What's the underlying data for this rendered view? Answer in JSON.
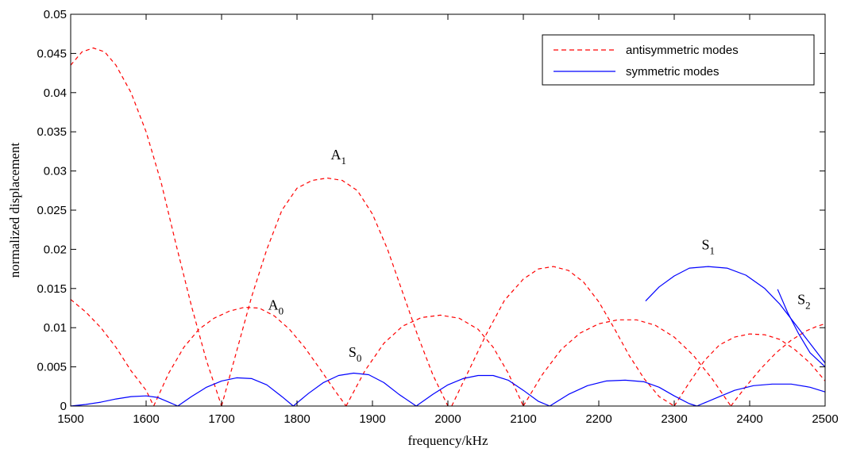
{
  "chart_data": {
    "type": "line",
    "xlabel": "frequency/kHz",
    "ylabel": "normalized displacement",
    "xlim": [
      1500,
      2500
    ],
    "ylim": [
      0,
      0.05
    ],
    "xticks": [
      1500,
      1600,
      1700,
      1800,
      1900,
      2000,
      2100,
      2200,
      2300,
      2400,
      2500
    ],
    "yticks": [
      0,
      0.005,
      0.01,
      0.015,
      0.02,
      0.025,
      0.03,
      0.035,
      0.04,
      0.045,
      0.05
    ],
    "xtick_labels": [
      "1500",
      "1600",
      "1700",
      "1800",
      "1900",
      "2000",
      "2100",
      "2200",
      "2300",
      "2400",
      "2500"
    ],
    "ytick_labels": [
      "0",
      "0.005",
      "0.01",
      "0.015",
      "0.02",
      "0.025",
      "0.03",
      "0.035",
      "0.04",
      "0.045",
      "0.05"
    ],
    "grid": false,
    "legend": {
      "placement": "top-right",
      "entries": [
        {
          "label": "antisymmetric modes",
          "color": "#ff0000",
          "style": "dashed"
        },
        {
          "label": "symmetric modes",
          "color": "#0000ff",
          "style": "solid"
        }
      ]
    },
    "annotations": [
      {
        "base": "A",
        "sub": "1",
        "x": 1855,
        "y": 0.0315
      },
      {
        "base": "A",
        "sub": "0",
        "x": 1772,
        "y": 0.0123
      },
      {
        "base": "S",
        "sub": "0",
        "x": 1877,
        "y": 0.0063
      },
      {
        "base": "S",
        "sub": "1",
        "x": 2345,
        "y": 0.02
      },
      {
        "base": "S",
        "sub": "2",
        "x": 2472,
        "y": 0.013
      }
    ],
    "series": [
      {
        "group": "antisymmetric",
        "color": "#ff0000",
        "style": "dashed",
        "points": [
          [
            1500,
            0.0435
          ],
          [
            1515,
            0.0452
          ],
          [
            1530,
            0.0457
          ],
          [
            1545,
            0.0452
          ],
          [
            1560,
            0.0435
          ],
          [
            1580,
            0.04
          ],
          [
            1600,
            0.035
          ],
          [
            1620,
            0.0285
          ],
          [
            1640,
            0.0205
          ],
          [
            1660,
            0.0128
          ],
          [
            1680,
            0.0058
          ],
          [
            1700,
            0.0
          ]
        ]
      },
      {
        "group": "antisymmetric",
        "color": "#ff0000",
        "style": "dashed",
        "points": [
          [
            1500,
            0.0136
          ],
          [
            1520,
            0.012
          ],
          [
            1540,
            0.01
          ],
          [
            1560,
            0.0075
          ],
          [
            1580,
            0.0045
          ],
          [
            1600,
            0.002
          ],
          [
            1610,
            0.0
          ]
        ]
      },
      {
        "group": "antisymmetric",
        "color": "#ff0000",
        "style": "dashed",
        "points": [
          [
            1610,
            0.0
          ],
          [
            1630,
            0.0042
          ],
          [
            1650,
            0.0075
          ],
          [
            1670,
            0.0098
          ],
          [
            1690,
            0.0112
          ],
          [
            1710,
            0.0121
          ],
          [
            1730,
            0.0126
          ],
          [
            1750,
            0.0125
          ],
          [
            1770,
            0.0115
          ],
          [
            1790,
            0.0098
          ],
          [
            1810,
            0.0075
          ],
          [
            1830,
            0.0048
          ],
          [
            1850,
            0.002
          ],
          [
            1865,
            0.0
          ]
        ]
      },
      {
        "group": "antisymmetric",
        "color": "#ff0000",
        "style": "dashed",
        "points": [
          [
            1700,
            0.0
          ],
          [
            1720,
            0.007
          ],
          [
            1740,
            0.014
          ],
          [
            1760,
            0.02
          ],
          [
            1780,
            0.025
          ],
          [
            1800,
            0.0278
          ],
          [
            1820,
            0.0288
          ],
          [
            1840,
            0.0291
          ],
          [
            1860,
            0.0288
          ],
          [
            1880,
            0.0275
          ],
          [
            1900,
            0.0245
          ],
          [
            1920,
            0.02
          ],
          [
            1940,
            0.0145
          ],
          [
            1960,
            0.009
          ],
          [
            1980,
            0.004
          ],
          [
            2000,
            0.0
          ]
        ]
      },
      {
        "group": "antisymmetric",
        "color": "#ff0000",
        "style": "dashed",
        "points": [
          [
            1865,
            0.0
          ],
          [
            1890,
            0.0045
          ],
          [
            1915,
            0.008
          ],
          [
            1940,
            0.0102
          ],
          [
            1965,
            0.0113
          ],
          [
            1990,
            0.0116
          ],
          [
            2015,
            0.0112
          ],
          [
            2040,
            0.0098
          ],
          [
            2060,
            0.0075
          ],
          [
            2080,
            0.0042
          ],
          [
            2100,
            0.0
          ]
        ]
      },
      {
        "group": "antisymmetric",
        "color": "#ff0000",
        "style": "dashed",
        "points": [
          [
            2005,
            0.0
          ],
          [
            2025,
            0.004
          ],
          [
            2050,
            0.009
          ],
          [
            2075,
            0.0135
          ],
          [
            2100,
            0.0162
          ],
          [
            2120,
            0.0175
          ],
          [
            2140,
            0.0178
          ],
          [
            2160,
            0.0173
          ],
          [
            2180,
            0.0158
          ],
          [
            2200,
            0.0133
          ],
          [
            2220,
            0.01
          ],
          [
            2240,
            0.0065
          ],
          [
            2260,
            0.0035
          ],
          [
            2280,
            0.0012
          ],
          [
            2300,
            0.0
          ]
        ]
      },
      {
        "group": "antisymmetric",
        "color": "#ff0000",
        "style": "dashed",
        "points": [
          [
            2100,
            0.0
          ],
          [
            2125,
            0.004
          ],
          [
            2150,
            0.0072
          ],
          [
            2175,
            0.0093
          ],
          [
            2200,
            0.0105
          ],
          [
            2225,
            0.011
          ],
          [
            2250,
            0.011
          ],
          [
            2275,
            0.0103
          ],
          [
            2300,
            0.0088
          ],
          [
            2325,
            0.0065
          ],
          [
            2350,
            0.0035
          ],
          [
            2375,
            0.0
          ]
        ]
      },
      {
        "group": "antisymmetric",
        "color": "#ff0000",
        "style": "dashed",
        "points": [
          [
            2300,
            0.0
          ],
          [
            2320,
            0.003
          ],
          [
            2340,
            0.0058
          ],
          [
            2360,
            0.0078
          ],
          [
            2380,
            0.0088
          ],
          [
            2400,
            0.0092
          ],
          [
            2420,
            0.0091
          ],
          [
            2440,
            0.0085
          ],
          [
            2460,
            0.0072
          ],
          [
            2480,
            0.0055
          ],
          [
            2500,
            0.0032
          ]
        ]
      },
      {
        "group": "antisymmetric",
        "color": "#ff0000",
        "style": "dashed",
        "points": [
          [
            2375,
            0.0
          ],
          [
            2395,
            0.0025
          ],
          [
            2415,
            0.0048
          ],
          [
            2435,
            0.0068
          ],
          [
            2455,
            0.0084
          ],
          [
            2475,
            0.0096
          ],
          [
            2490,
            0.0102
          ],
          [
            2500,
            0.0105
          ]
        ]
      },
      {
        "group": "symmetric",
        "color": "#0000ff",
        "style": "solid",
        "points": [
          [
            1500,
            0.0
          ],
          [
            1520,
            0.0002
          ],
          [
            1540,
            0.0005
          ],
          [
            1560,
            0.0009
          ],
          [
            1580,
            0.0012
          ],
          [
            1600,
            0.0013
          ],
          [
            1615,
            0.0011
          ],
          [
            1630,
            0.0005
          ],
          [
            1642,
            0.0
          ]
        ]
      },
      {
        "group": "symmetric",
        "color": "#0000ff",
        "style": "solid",
        "points": [
          [
            1642,
            0.0
          ],
          [
            1660,
            0.0012
          ],
          [
            1680,
            0.0024
          ],
          [
            1700,
            0.0032
          ],
          [
            1720,
            0.0036
          ],
          [
            1740,
            0.0035
          ],
          [
            1760,
            0.0027
          ],
          [
            1780,
            0.0012
          ],
          [
            1795,
            0.0
          ]
        ]
      },
      {
        "group": "symmetric",
        "color": "#0000ff",
        "style": "solid",
        "points": [
          [
            1795,
            0.0
          ],
          [
            1815,
            0.0016
          ],
          [
            1835,
            0.003
          ],
          [
            1855,
            0.0039
          ],
          [
            1875,
            0.0042
          ],
          [
            1895,
            0.004
          ],
          [
            1915,
            0.003
          ],
          [
            1935,
            0.0015
          ],
          [
            1958,
            0.0
          ]
        ]
      },
      {
        "group": "symmetric",
        "color": "#0000ff",
        "style": "solid",
        "points": [
          [
            1958,
            0.0
          ],
          [
            1980,
            0.0015
          ],
          [
            2000,
            0.0027
          ],
          [
            2020,
            0.0035
          ],
          [
            2040,
            0.0039
          ],
          [
            2060,
            0.0039
          ],
          [
            2080,
            0.0033
          ],
          [
            2100,
            0.002
          ],
          [
            2120,
            0.0006
          ],
          [
            2135,
            0.0
          ]
        ]
      },
      {
        "group": "symmetric",
        "color": "#0000ff",
        "style": "solid",
        "points": [
          [
            2135,
            0.0
          ],
          [
            2160,
            0.0015
          ],
          [
            2185,
            0.0026
          ],
          [
            2210,
            0.0032
          ],
          [
            2235,
            0.0033
          ],
          [
            2260,
            0.0031
          ],
          [
            2280,
            0.0024
          ],
          [
            2300,
            0.0013
          ],
          [
            2320,
            0.0003
          ],
          [
            2330,
            0.0
          ]
        ]
      },
      {
        "group": "symmetric",
        "color": "#0000ff",
        "style": "solid",
        "points": [
          [
            2330,
            0.0
          ],
          [
            2355,
            0.001
          ],
          [
            2380,
            0.002
          ],
          [
            2405,
            0.0026
          ],
          [
            2430,
            0.0028
          ],
          [
            2455,
            0.0028
          ],
          [
            2480,
            0.0024
          ],
          [
            2500,
            0.0018
          ]
        ]
      },
      {
        "group": "symmetric",
        "color": "#0000ff",
        "style": "solid",
        "points": [
          [
            2262,
            0.0134
          ],
          [
            2280,
            0.0152
          ],
          [
            2300,
            0.0166
          ],
          [
            2320,
            0.0176
          ],
          [
            2345,
            0.0178
          ],
          [
            2370,
            0.0176
          ],
          [
            2395,
            0.0167
          ],
          [
            2420,
            0.015
          ],
          [
            2440,
            0.013
          ],
          [
            2460,
            0.0105
          ],
          [
            2480,
            0.008
          ],
          [
            2500,
            0.0055
          ]
        ]
      },
      {
        "group": "symmetric",
        "color": "#0000ff",
        "style": "solid",
        "points": [
          [
            2437,
            0.0149
          ],
          [
            2450,
            0.012
          ],
          [
            2465,
            0.0092
          ],
          [
            2480,
            0.0068
          ],
          [
            2500,
            0.005
          ]
        ]
      }
    ]
  }
}
